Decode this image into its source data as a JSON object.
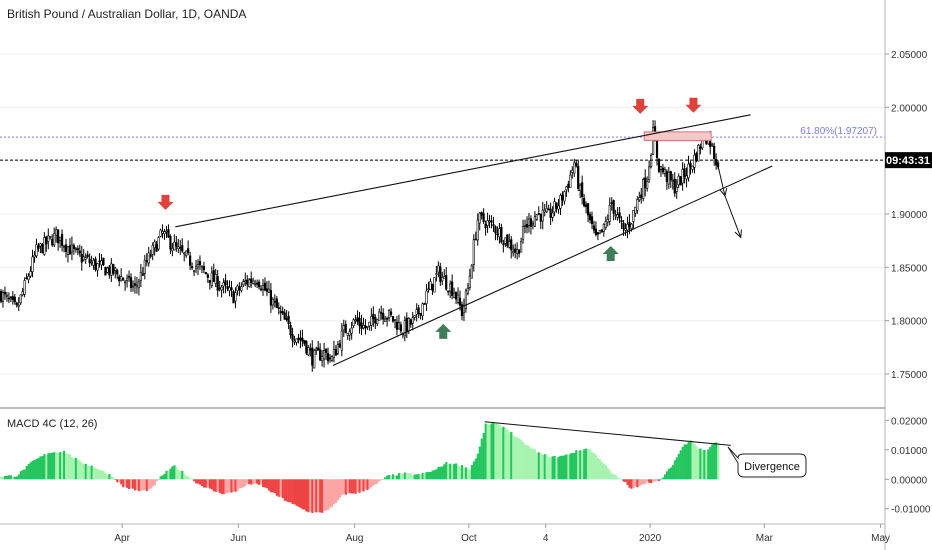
{
  "header": {
    "title": "British Pound / Australian Dollar, 1D, OANDA"
  },
  "colors": {
    "up_candle": "#000000",
    "down_candle": "#000000",
    "macd_pos_strong": "#22c55e",
    "macd_pos_weak": "#a7f3b0",
    "macd_neg_strong": "#ef4444",
    "macd_neg_weak": "#fca5a5",
    "arrow_down": "#e0413a",
    "arrow_up": "#3e7d55",
    "fib_line": "#7b7fe0",
    "resistance_box": "#f8c8c8"
  },
  "price_axis": {
    "ticks": [
      "2.05000",
      "2.00000",
      "1.95000",
      "1.90000",
      "1.85000",
      "1.80000",
      "1.75000"
    ],
    "tick_values": [
      2.05,
      2.0,
      1.95,
      1.9,
      1.85,
      1.8,
      1.75
    ],
    "current_price_label": "09:43:31",
    "current_price": 1.9505,
    "ylim": [
      1.72,
      2.08
    ]
  },
  "fib": {
    "label": "61.80%(1.97207)",
    "value": 1.97207
  },
  "macd": {
    "title": "MACD 4C (12, 26)",
    "ticks": [
      "0.02000",
      "0.01000",
      "0.00000",
      "-0.01000"
    ],
    "tick_values": [
      0.02,
      0.01,
      0.0,
      -0.01
    ],
    "ylim": [
      -0.0145,
      0.0235
    ],
    "annotation": "Divergence"
  },
  "time_axis": {
    "labels": [
      "Apr",
      "Jun",
      "Aug",
      "Oct",
      "4",
      "2020",
      "Mar",
      "May"
    ],
    "label_index": [
      62,
      121,
      180,
      238,
      277,
      330,
      388,
      447
    ]
  },
  "chart_data": {
    "type": "candlestick",
    "title": "British Pound / Australian Dollar, 1D, OANDA",
    "xlabel": "",
    "ylabel": "",
    "close_anchors": [
      [
        0,
        1.825
      ],
      [
        8,
        1.81
      ],
      [
        18,
        1.865
      ],
      [
        28,
        1.88
      ],
      [
        38,
        1.862
      ],
      [
        48,
        1.852
      ],
      [
        58,
        1.845
      ],
      [
        68,
        1.83
      ],
      [
        74,
        1.855
      ],
      [
        82,
        1.882
      ],
      [
        90,
        1.865
      ],
      [
        100,
        1.85
      ],
      [
        110,
        1.835
      ],
      [
        118,
        1.823
      ],
      [
        124,
        1.836
      ],
      [
        130,
        1.84
      ],
      [
        136,
        1.823
      ],
      [
        142,
        1.805
      ],
      [
        148,
        1.788
      ],
      [
        154,
        1.78
      ],
      [
        158,
        1.765
      ],
      [
        164,
        1.77
      ],
      [
        168,
        1.764
      ],
      [
        174,
        1.79
      ],
      [
        180,
        1.8
      ],
      [
        186,
        1.792
      ],
      [
        192,
        1.81
      ],
      [
        198,
        1.803
      ],
      [
        204,
        1.792
      ],
      [
        210,
        1.8
      ],
      [
        216,
        1.824
      ],
      [
        222,
        1.845
      ],
      [
        226,
        1.836
      ],
      [
        230,
        1.828
      ],
      [
        234,
        1.808
      ],
      [
        237,
        1.83
      ],
      [
        240,
        1.87
      ],
      [
        242,
        1.895
      ],
      [
        246,
        1.893
      ],
      [
        252,
        1.885
      ],
      [
        258,
        1.872
      ],
      [
        262,
        1.864
      ],
      [
        266,
        1.888
      ],
      [
        272,
        1.9
      ],
      [
        278,
        1.898
      ],
      [
        284,
        1.912
      ],
      [
        288,
        1.93
      ],
      [
        291,
        1.948
      ],
      [
        294,
        1.92
      ],
      [
        298,
        1.898
      ],
      [
        302,
        1.875
      ],
      [
        306,
        1.885
      ],
      [
        310,
        1.91
      ],
      [
        316,
        1.883
      ],
      [
        320,
        1.895
      ],
      [
        324,
        1.918
      ],
      [
        328,
        1.935
      ],
      [
        331,
        1.975
      ],
      [
        334,
        1.945
      ],
      [
        338,
        1.935
      ],
      [
        342,
        1.925
      ],
      [
        346,
        1.935
      ],
      [
        350,
        1.945
      ],
      [
        354,
        1.96
      ],
      [
        357,
        1.975
      ],
      [
        360,
        1.968
      ],
      [
        363,
        1.95
      ]
    ],
    "macd_anchors": [
      [
        0,
        0.001
      ],
      [
        8,
        0.0012
      ],
      [
        16,
        0.006
      ],
      [
        24,
        0.009
      ],
      [
        32,
        0.0095
      ],
      [
        40,
        0.006
      ],
      [
        48,
        0.004
      ],
      [
        56,
        0.0012
      ],
      [
        62,
        -0.0025
      ],
      [
        70,
        -0.004
      ],
      [
        76,
        -0.0035
      ],
      [
        82,
        0.0015
      ],
      [
        88,
        0.0045
      ],
      [
        94,
        0.0015
      ],
      [
        100,
        -0.0015
      ],
      [
        108,
        -0.004
      ],
      [
        114,
        -0.005
      ],
      [
        120,
        -0.0038
      ],
      [
        126,
        -0.0015
      ],
      [
        132,
        -0.002
      ],
      [
        140,
        -0.0055
      ],
      [
        148,
        -0.0085
      ],
      [
        156,
        -0.011
      ],
      [
        162,
        -0.0115
      ],
      [
        168,
        -0.0095
      ],
      [
        174,
        -0.005
      ],
      [
        182,
        -0.0045
      ],
      [
        190,
        -0.002
      ],
      [
        196,
        0.001
      ],
      [
        204,
        0.002
      ],
      [
        212,
        0.0015
      ],
      [
        220,
        0.003
      ],
      [
        226,
        0.0055
      ],
      [
        232,
        0.005
      ],
      [
        238,
        0.0035
      ],
      [
        242,
        0.0085
      ],
      [
        246,
        0.0185
      ],
      [
        250,
        0.019
      ],
      [
        256,
        0.0175
      ],
      [
        262,
        0.014
      ],
      [
        268,
        0.011
      ],
      [
        274,
        0.0085
      ],
      [
        280,
        0.0075
      ],
      [
        286,
        0.008
      ],
      [
        292,
        0.0095
      ],
      [
        298,
        0.0105
      ],
      [
        304,
        0.007
      ],
      [
        310,
        0.002
      ],
      [
        316,
        -0.0005
      ],
      [
        320,
        -0.0035
      ],
      [
        324,
        -0.002
      ],
      [
        328,
        -0.001
      ],
      [
        334,
        -0.0008
      ],
      [
        340,
        0.004
      ],
      [
        346,
        0.011
      ],
      [
        350,
        0.0135
      ],
      [
        354,
        0.0105
      ],
      [
        358,
        0.0095
      ],
      [
        362,
        0.0125
      ],
      [
        364,
        0.012
      ]
    ],
    "bars": 365
  },
  "drawings": {
    "trendlines": [
      {
        "name": "upper-resistance-line",
        "from": [
          89,
          1.888
        ],
        "to": [
          381,
          1.993
        ]
      },
      {
        "name": "lower-support-line",
        "from": [
          169,
          1.758
        ],
        "to": [
          392,
          1.945
        ]
      },
      {
        "name": "macd-divergence-line",
        "from": [
          246,
          0.0195
        ],
        "to": [
          371,
          0.0115
        ]
      }
    ],
    "projection": [
      [
        364,
        1.949
      ],
      [
        368,
        1.917
      ],
      [
        376,
        1.878
      ]
    ],
    "arrows_down": [
      [
        84,
        1.902
      ],
      [
        325,
        1.992
      ],
      [
        352,
        1.993
      ]
    ],
    "arrows_up": [
      [
        225,
        1.797
      ],
      [
        310,
        1.87
      ]
    ],
    "resistance_box": {
      "from_bar": 327,
      "to_bar": 361,
      "top": 1.977,
      "bottom": 1.969
    }
  }
}
